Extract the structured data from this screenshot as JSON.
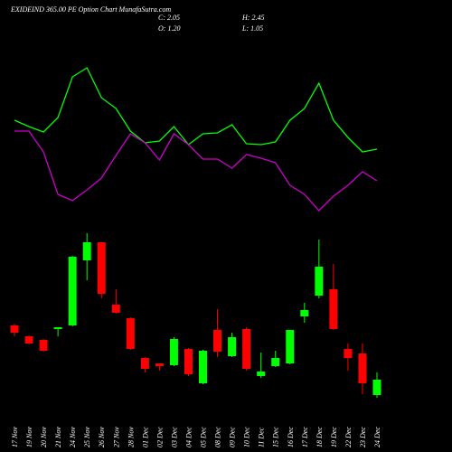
{
  "chart_data": {
    "type": "candlestick",
    "title": "EXIDEIND 365.00 PE Option  Chart MunafaSutra.com",
    "info": [
      "C: 2.05",
      "H: 2.45",
      "O: 1.20",
      "L: 1.05"
    ],
    "categories": [
      "17 Nov",
      "19 Nov",
      "20 Nov",
      "21 Nov",
      "24 Nov",
      "25 Nov",
      "26 Nov",
      "27 Nov",
      "28 Nov",
      "01 Dec",
      "02 Dec",
      "03 Dec",
      "04 Dec",
      "05 Dec",
      "08 Dec",
      "09 Dec",
      "10 Dec",
      "11 Dec",
      "15 Dec",
      "16 Dec",
      "17 Dec",
      "18 Dec",
      "19 Dec",
      "22 Dec",
      "23 Dec",
      "24 Dec"
    ],
    "open": [
      5.05,
      4.45,
      4.25,
      4.85,
      5.05,
      8.65,
      9.65,
      6.2,
      5.45,
      3.25,
      2.95,
      2.85,
      3.75,
      1.85,
      4.8,
      3.35,
      4.85,
      2.25,
      2.8,
      2.95,
      5.55,
      6.7,
      7.05,
      3.75,
      3.5,
      1.2
    ],
    "high": [
      5.15,
      4.5,
      4.3,
      4.95,
      8.9,
      10.15,
      9.65,
      7.05,
      5.5,
      3.3,
      2.95,
      4.4,
      3.8,
      3.7,
      5.95,
      4.65,
      4.95,
      3.55,
      3.65,
      4.8,
      6.3,
      9.8,
      8.45,
      4.05,
      4.05,
      2.45
    ],
    "low": [
      4.45,
      4.0,
      3.6,
      4.45,
      5.0,
      7.55,
      6.55,
      5.7,
      3.7,
      2.45,
      2.55,
      2.8,
      2.25,
      1.8,
      3.3,
      3.3,
      2.55,
      2.15,
      2.75,
      2.9,
      5.2,
      6.55,
      4.8,
      2.55,
      1.25,
      1.05
    ],
    "close": [
      4.65,
      4.05,
      3.65,
      4.95,
      8.85,
      9.65,
      6.8,
      5.75,
      3.75,
      2.65,
      2.8,
      4.3,
      2.35,
      3.65,
      3.6,
      4.4,
      2.65,
      2.5,
      3.25,
      4.8,
      5.9,
      8.3,
      4.85,
      3.25,
      1.85,
      2.05
    ],
    "up_color": "#00ff00",
    "down_color": "#ff0000",
    "lines": [
      {
        "color": "#00ff00",
        "values": [
          117,
          110,
          104,
          120,
          165,
          175,
          142,
          130,
          105,
          92,
          94,
          110,
          90,
          102,
          103,
          112,
          91,
          90,
          93,
          117,
          130,
          158,
          117,
          98,
          82,
          85
        ]
      },
      {
        "color": "#cc00cc",
        "values": [
          105,
          105,
          82,
          35,
          28,
          40,
          53,
          78,
          102,
          92,
          73,
          102,
          90,
          74,
          74,
          64,
          79,
          75,
          70,
          45,
          35,
          17,
          33,
          45,
          60,
          50
        ]
      }
    ]
  }
}
